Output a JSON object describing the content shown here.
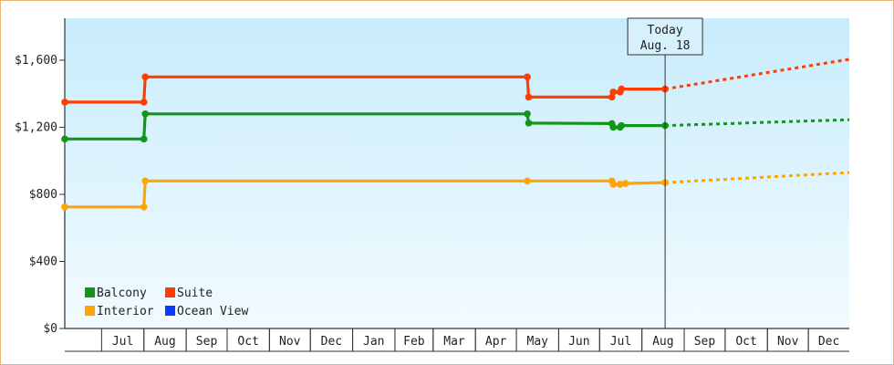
{
  "chart_data": {
    "type": "line",
    "step": true,
    "y_unit": "USD",
    "ylim": [
      0,
      1850
    ],
    "y_ticks": [
      0,
      400,
      800,
      1200,
      1600
    ],
    "y_tick_labels": [
      "$0",
      "$400",
      "$800",
      "$1,200",
      "$1,600"
    ],
    "xlim": [
      "2024-06-04",
      "2025-12-31"
    ],
    "x_tick_labels": [
      {
        "label": "Jul",
        "start": "2024-07-01",
        "end": "2024-08-01"
      },
      {
        "label": "Aug",
        "start": "2024-08-01",
        "end": "2024-09-01"
      },
      {
        "label": "Sep",
        "start": "2024-09-01",
        "end": "2024-10-01"
      },
      {
        "label": "Oct",
        "start": "2024-10-01",
        "end": "2024-11-01"
      },
      {
        "label": "Nov",
        "start": "2024-11-01",
        "end": "2024-12-01"
      },
      {
        "label": "Dec",
        "start": "2024-12-01",
        "end": "2025-01-01"
      },
      {
        "label": "Jan",
        "start": "2025-01-01",
        "end": "2025-02-01"
      },
      {
        "label": "Feb",
        "start": "2025-02-01",
        "end": "2025-03-01"
      },
      {
        "label": "Mar",
        "start": "2025-03-01",
        "end": "2025-04-01"
      },
      {
        "label": "Apr",
        "start": "2025-04-01",
        "end": "2025-05-01"
      },
      {
        "label": "May",
        "start": "2025-05-01",
        "end": "2025-06-01"
      },
      {
        "label": "Jun",
        "start": "2025-06-01",
        "end": "2025-07-01"
      },
      {
        "label": "Jul",
        "start": "2025-07-01",
        "end": "2025-08-01"
      },
      {
        "label": "Aug",
        "start": "2025-08-01",
        "end": "2025-09-01"
      },
      {
        "label": "Sep",
        "start": "2025-09-01",
        "end": "2025-10-01"
      },
      {
        "label": "Oct",
        "start": "2025-10-01",
        "end": "2025-11-01"
      },
      {
        "label": "Nov",
        "start": "2025-11-01",
        "end": "2025-12-01"
      },
      {
        "label": "Dec",
        "start": "2025-12-01",
        "end": "2026-01-01"
      }
    ],
    "today": {
      "line1": "Today",
      "line2": "Aug. 18",
      "date": "2025-08-18"
    },
    "legend_position": "bottom-left",
    "series": [
      {
        "name": "Balcony",
        "color": "#109618",
        "points": [
          {
            "x": "2024-06-04",
            "y": 1130
          },
          {
            "x": "2024-08-01",
            "y": 1130
          },
          {
            "x": "2024-08-02",
            "y": 1280
          },
          {
            "x": "2025-05-09",
            "y": 1280
          },
          {
            "x": "2025-05-10",
            "y": 1225
          },
          {
            "x": "2025-07-10",
            "y": 1222
          },
          {
            "x": "2025-07-11",
            "y": 1200
          },
          {
            "x": "2025-07-16",
            "y": 1200
          },
          {
            "x": "2025-07-17",
            "y": 1210
          },
          {
            "x": "2025-08-18",
            "y": 1210
          }
        ],
        "forecast": [
          {
            "x": "2025-08-18",
            "y": 1210
          },
          {
            "x": "2025-12-31",
            "y": 1245
          }
        ]
      },
      {
        "name": "Suite",
        "color": "#ff3d00",
        "points": [
          {
            "x": "2024-06-04",
            "y": 1350
          },
          {
            "x": "2024-08-01",
            "y": 1350
          },
          {
            "x": "2024-08-02",
            "y": 1500
          },
          {
            "x": "2025-05-09",
            "y": 1500
          },
          {
            "x": "2025-05-10",
            "y": 1380
          },
          {
            "x": "2025-07-10",
            "y": 1380
          },
          {
            "x": "2025-07-11",
            "y": 1410
          },
          {
            "x": "2025-07-16",
            "y": 1410
          },
          {
            "x": "2025-07-17",
            "y": 1428
          },
          {
            "x": "2025-08-18",
            "y": 1428
          }
        ],
        "forecast": [
          {
            "x": "2025-08-18",
            "y": 1428
          },
          {
            "x": "2025-12-31",
            "y": 1605
          }
        ]
      },
      {
        "name": "Interior",
        "color": "#ffa500",
        "points": [
          {
            "x": "2024-06-04",
            "y": 725
          },
          {
            "x": "2024-08-01",
            "y": 725
          },
          {
            "x": "2024-08-02",
            "y": 880
          },
          {
            "x": "2025-05-09",
            "y": 880
          },
          {
            "x": "2025-07-10",
            "y": 880
          },
          {
            "x": "2025-07-11",
            "y": 860
          },
          {
            "x": "2025-07-16",
            "y": 860
          },
          {
            "x": "2025-07-20",
            "y": 865
          },
          {
            "x": "2025-08-18",
            "y": 870
          }
        ],
        "forecast": [
          {
            "x": "2025-08-18",
            "y": 870
          },
          {
            "x": "2025-12-31",
            "y": 930
          }
        ]
      },
      {
        "name": "Ocean View",
        "color": "#0b3bff",
        "points": [],
        "forecast": []
      }
    ]
  }
}
